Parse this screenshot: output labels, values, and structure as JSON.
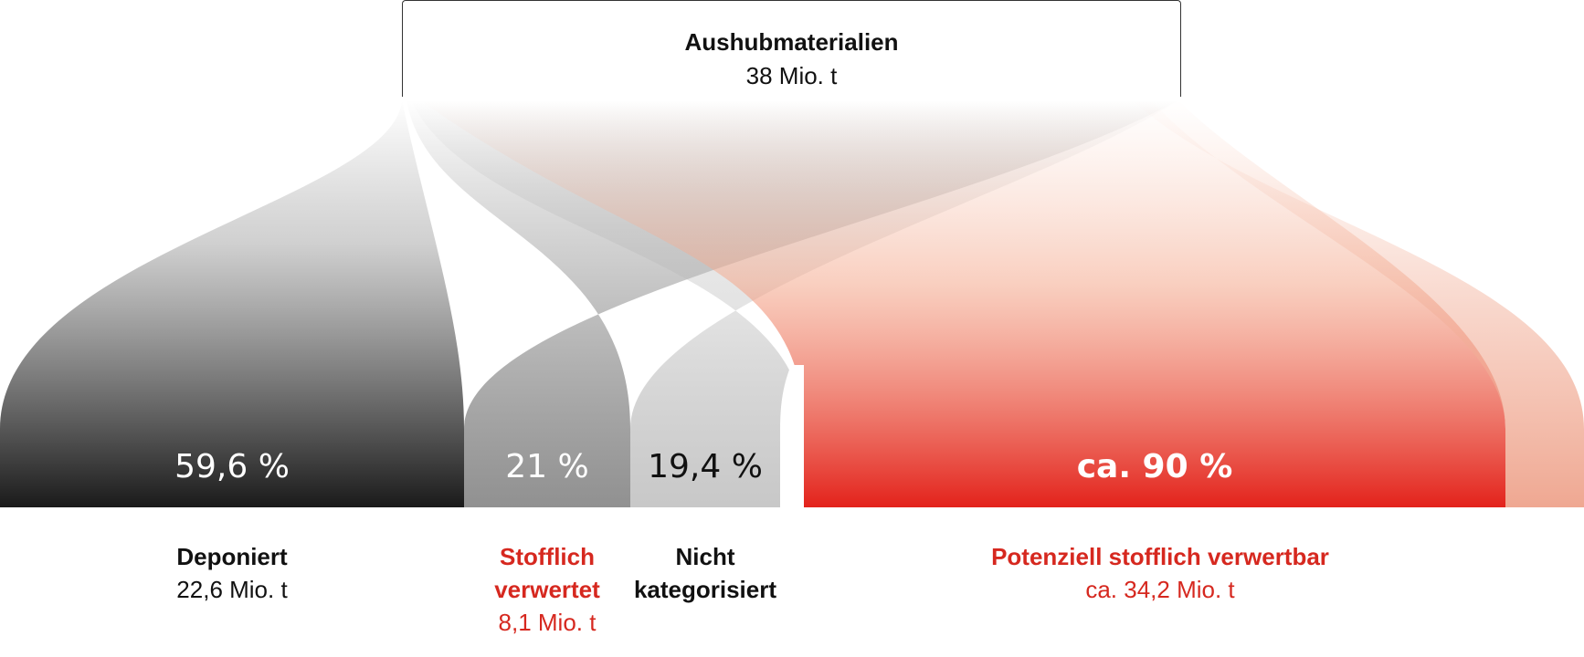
{
  "source": {
    "title": "Aushubmaterialien",
    "value": "38 Mio. t"
  },
  "colors": {
    "dark": "#111111",
    "red": "#d6281f",
    "grey_light": "#c8c8c8"
  },
  "flows": [
    {
      "id": "deponiert",
      "percent_label": "59,6 %",
      "name": "Deponiert",
      "value": "22,6 Mio. t",
      "share": 59.6
    },
    {
      "id": "verwertet",
      "percent_label": "21 %",
      "name_line1": "Stofflich",
      "name_line2": "verwertet",
      "value": "8,1 Mio. t",
      "share": 21
    },
    {
      "id": "nicht",
      "percent_label": "19,4 %",
      "name_line1": "Nicht",
      "name_line2": "kategorisiert",
      "share": 19.4
    },
    {
      "id": "potenziell",
      "percent_label": "ca. 90 %",
      "name": "Potenziell stofflich verwertbar",
      "value": "ca. 34,2 Mio. t",
      "share": 90
    }
  ]
}
